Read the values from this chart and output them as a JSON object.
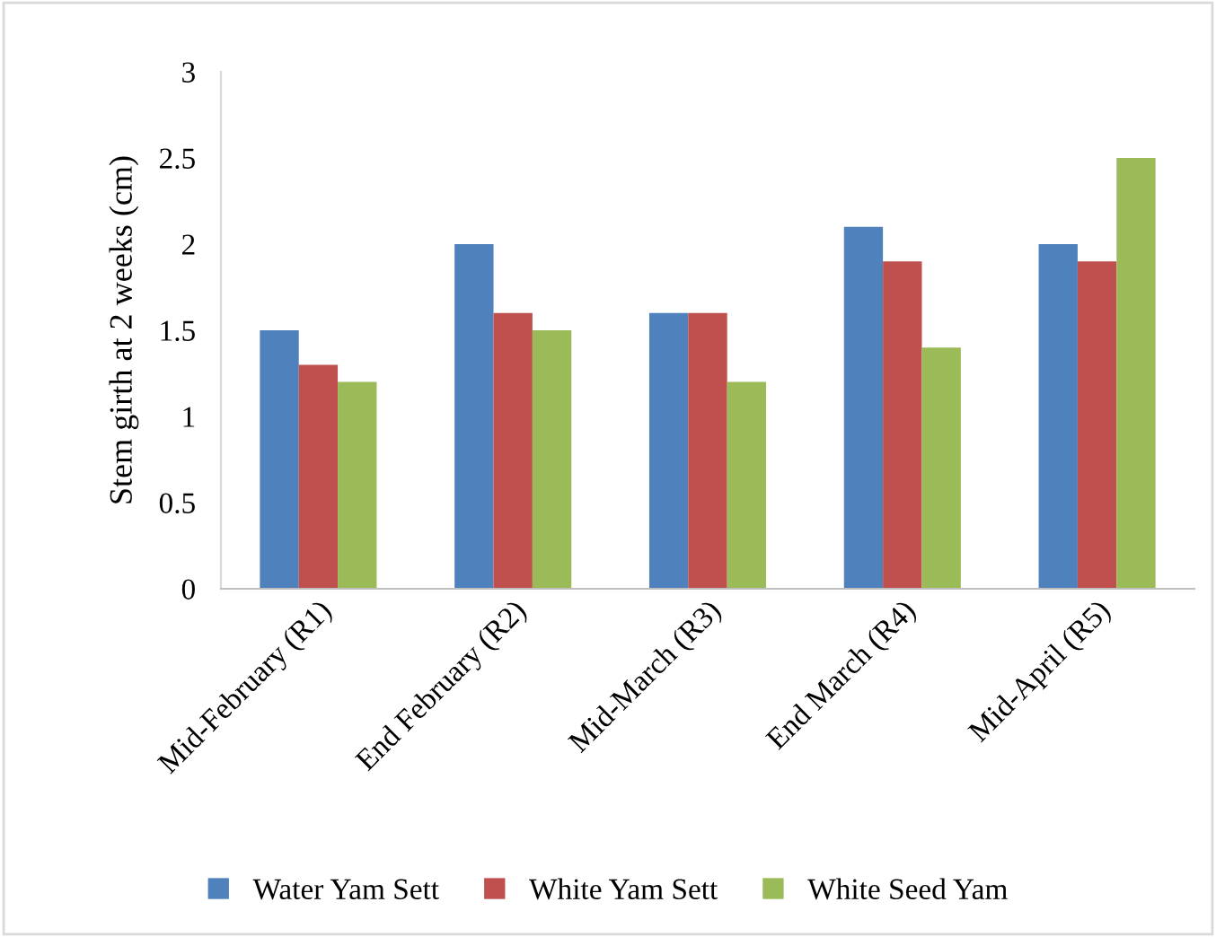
{
  "chart_data": {
    "type": "bar",
    "ylabel": "Stem girth at 2 weeks (cm)",
    "categories": [
      "Mid-February (R1)",
      "End February (R2)",
      "Mid-March (R3)",
      "End March (R4)",
      "Mid-April (R5)"
    ],
    "series": [
      {
        "name": "Water Yam Sett",
        "color": "#4f81bd",
        "values": [
          1.5,
          2.0,
          1.6,
          2.1,
          2.0
        ]
      },
      {
        "name": "White Yam Sett",
        "color": "#c0504d",
        "values": [
          1.3,
          1.6,
          1.6,
          1.9,
          1.9
        ]
      },
      {
        "name": "White Seed Yam",
        "color": "#9bbb59",
        "values": [
          1.2,
          1.5,
          1.2,
          1.4,
          2.5
        ]
      }
    ],
    "ylim": [
      0,
      3
    ],
    "yticks": [
      0,
      0.5,
      1,
      1.5,
      2,
      2.5,
      3
    ],
    "grid": false,
    "legend": "bottom"
  }
}
